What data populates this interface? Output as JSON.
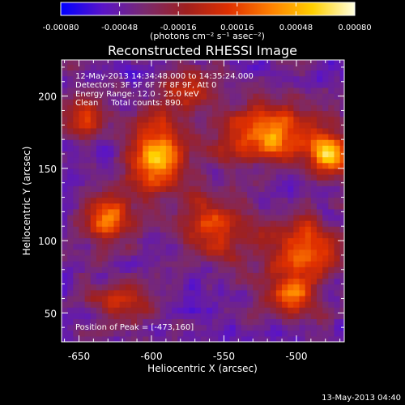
{
  "colorbar": {
    "ticks": [
      "-0.00080",
      "-0.00048",
      "-0.00016",
      "0.00016",
      "0.00048",
      "0.00080"
    ],
    "tick_values": [
      -0.0008,
      -0.00048,
      -0.00016,
      0.00016,
      0.00048,
      0.0008
    ],
    "range": [
      -0.0008,
      0.0008
    ],
    "units_label": "(photons cm⁻² s⁻¹ asec⁻²)",
    "colormap": [
      "#0000ff",
      "#5a14c8",
      "#7a2a6e",
      "#a0201e",
      "#e03000",
      "#ff8000",
      "#ffd000",
      "#ffffe0"
    ]
  },
  "chart_data": {
    "type": "heatmap",
    "title": "Reconstructed RHESSI Image",
    "xlabel": "Heliocentric X (arcsec)",
    "ylabel": "Heliocentric Y (arcsec)",
    "xlim": [
      -662,
      -467
    ],
    "ylim": [
      30,
      225
    ],
    "xticks": [
      -650,
      -600,
      -550,
      -500
    ],
    "xtick_labels": [
      "-650",
      "-600",
      "-550",
      "-500"
    ],
    "yticks": [
      50,
      100,
      150,
      200
    ],
    "ytick_labels": [
      "50",
      "100",
      "150",
      "200"
    ],
    "annotation_lines": [
      "12-May-2013 14:34:48.000 to 14:35:24.000",
      "Detectors: 3F 5F 6F 7F 8F 9F, Att 0",
      "Energy Range: 12.0 - 25.0 keV",
      "Clean     Total counts: 890."
    ],
    "peak_label": "Position of Peak = [-473,160]",
    "peak_position": [
      -473,
      160
    ],
    "sources": [
      {
        "x": -595,
        "y": 158,
        "sx": 14,
        "sy": 18,
        "amp": 1.0
      },
      {
        "x": -630,
        "y": 115,
        "sx": 12,
        "sy": 12,
        "amp": 0.75
      },
      {
        "x": -645,
        "y": 185,
        "sx": 10,
        "sy": 12,
        "amp": 0.55
      },
      {
        "x": -520,
        "y": 175,
        "sx": 22,
        "sy": 14,
        "amp": 0.9
      },
      {
        "x": -478,
        "y": 160,
        "sx": 10,
        "sy": 10,
        "amp": 1.0
      },
      {
        "x": -555,
        "y": 110,
        "sx": 16,
        "sy": 14,
        "amp": 0.6
      },
      {
        "x": -495,
        "y": 95,
        "sx": 18,
        "sy": 14,
        "amp": 0.7
      },
      {
        "x": -505,
        "y": 62,
        "sx": 12,
        "sy": 10,
        "amp": 0.75
      },
      {
        "x": -620,
        "y": 60,
        "sx": 14,
        "sy": 10,
        "amp": 0.5
      },
      {
        "x": -575,
        "y": 205,
        "sx": 14,
        "sy": 10,
        "amp": 0.45
      }
    ]
  },
  "footer": {
    "timestamp": "13-May-2013 04:40"
  }
}
